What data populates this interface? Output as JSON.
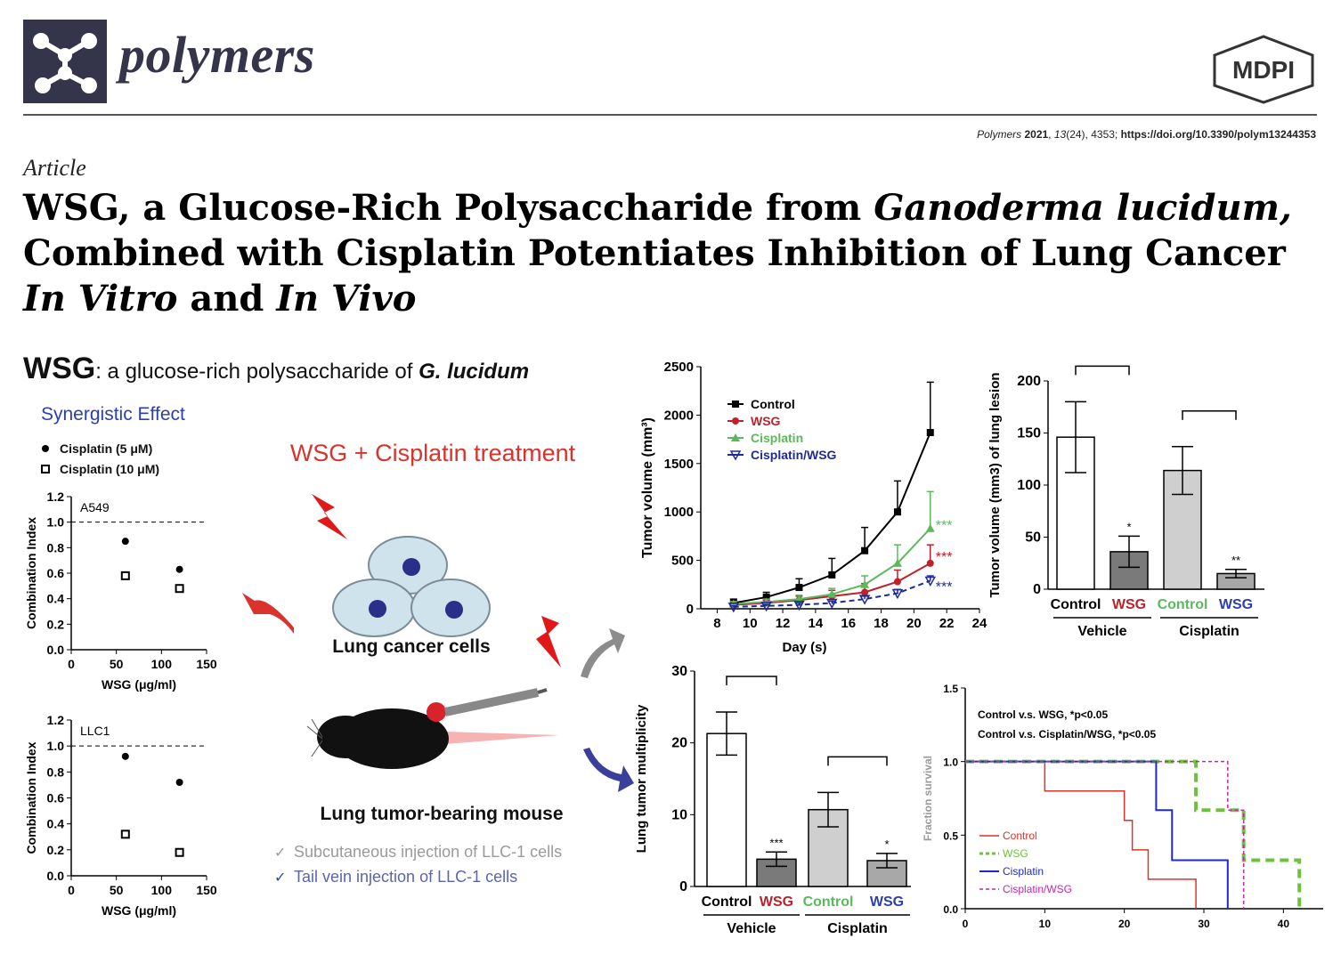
{
  "header": {
    "journal": "polymers",
    "publisher": "MDPI",
    "citation": {
      "journal": "Polymers",
      "year": "2021",
      "volume": "13",
      "issue": "(24)",
      "pages": ", 4353; ",
      "doi": "https://doi.org/10.3390/polym13244353"
    },
    "article_type": "Article"
  },
  "title": {
    "part1": "WSG, a Glucose-Rich Polysaccharide from ",
    "part2_italic": "Ganoderma lucidum,",
    "part3": "Combined with Cisplatin Potentiates Inhibition of Lung Cancer",
    "part4_italic": "In Vitro",
    "part5": " and ",
    "part6_italic": "In Vivo"
  },
  "graphical_abstract": {
    "heading_bold": "WSG",
    "heading_rest": ": a glucose-rich polysaccharide of ",
    "heading_italic": "G. lucidum",
    "synergy_title": "Synergistic Effect",
    "legend_cis5": "Cisplatin (5 μM)",
    "legend_cis10": "Cisplatin (10 μM)",
    "treatment_title": "WSG + Cisplatin treatment",
    "cells_label": "Lung cancer cells",
    "mouse_label": "Lung tumor-bearing mouse",
    "check1": "Subcutaneous injection of LLC-1 cells",
    "check2": "Tail vein injection of LLC-1 cells",
    "colors": {
      "control": "#000000",
      "wsg": "#c0202a",
      "cisplatin": "#5cb85c",
      "cisplatin_wsg": "#1f2a99",
      "pink": "#c425b0",
      "blue_text": "#2b3fb0",
      "red_text": "#d9332c"
    }
  },
  "chart_data": [
    {
      "id": "ci-a549",
      "type": "scatter",
      "panel_label": "A549",
      "xlabel": "WSG (μg/ml)",
      "ylabel": "Combination Index",
      "xlim": [
        0,
        150
      ],
      "ylim": [
        0,
        1.2
      ],
      "xticks": [
        "0",
        "50",
        "100",
        "150"
      ],
      "yticks": [
        "0.0",
        "0.2",
        "0.4",
        "0.6",
        "0.8",
        "1.0",
        "1.2"
      ],
      "reference_line": 1.0,
      "series": [
        {
          "name": "Cisplatin (5 μM)",
          "marker": "filled-circle",
          "points": [
            [
              60,
              0.85
            ],
            [
              120,
              0.63
            ]
          ]
        },
        {
          "name": "Cisplatin (10 μM)",
          "marker": "open-square",
          "points": [
            [
              60,
              0.58
            ],
            [
              120,
              0.48
            ]
          ]
        }
      ]
    },
    {
      "id": "ci-llc1",
      "type": "scatter",
      "panel_label": "LLC1",
      "xlabel": "WSG (μg/ml)",
      "ylabel": "Combination Index",
      "xlim": [
        0,
        150
      ],
      "ylim": [
        0,
        1.2
      ],
      "xticks": [
        "0",
        "50",
        "100",
        "150"
      ],
      "yticks": [
        "0.0",
        "0.2",
        "0.4",
        "0.6",
        "0.8",
        "1.0",
        "1.2"
      ],
      "reference_line": 1.0,
      "series": [
        {
          "name": "Cisplatin (5 μM)",
          "marker": "filled-circle",
          "points": [
            [
              60,
              0.92
            ],
            [
              120,
              0.72
            ]
          ]
        },
        {
          "name": "Cisplatin (10 μM)",
          "marker": "open-square",
          "points": [
            [
              60,
              0.32
            ],
            [
              120,
              0.18
            ]
          ]
        }
      ]
    },
    {
      "id": "tumor-volume-line",
      "type": "line",
      "xlabel": "Day (s)",
      "ylabel": "Tumor volume (mm³)",
      "xlim": [
        7,
        24
      ],
      "ylim": [
        0,
        2500
      ],
      "xticks": [
        "8",
        "10",
        "12",
        "14",
        "16",
        "18",
        "20",
        "22",
        "24"
      ],
      "yticks": [
        "0",
        "500",
        "1000",
        "1500",
        "2000",
        "2500"
      ],
      "legend_position": "top-left",
      "x": [
        9,
        11,
        13,
        15,
        17,
        19,
        21
      ],
      "series": [
        {
          "name": "Control",
          "values": [
            60,
            120,
            220,
            350,
            600,
            1000,
            1820
          ],
          "err": [
            40,
            50,
            90,
            170,
            240,
            320,
            520
          ]
        },
        {
          "name": "WSG",
          "values": [
            40,
            60,
            90,
            130,
            170,
            280,
            470
          ],
          "err": [
            20,
            30,
            40,
            60,
            90,
            120,
            190
          ]
        },
        {
          "name": "Cisplatin",
          "values": [
            50,
            70,
            100,
            150,
            250,
            470,
            830
          ],
          "err": [
            25,
            30,
            40,
            60,
            90,
            190,
            380
          ]
        },
        {
          "name": "Cisplatin/WSG",
          "values": [
            20,
            30,
            40,
            60,
            100,
            160,
            290
          ],
          "err": [
            10,
            15,
            20,
            20,
            30,
            40,
            50
          ]
        }
      ],
      "annotations": [
        "***",
        "***",
        "***"
      ]
    },
    {
      "id": "lung-lesion-bar",
      "type": "bar",
      "ylabel": "Tumor volume (mm3) of lung lesion",
      "ylim": [
        0,
        200
      ],
      "yticks": [
        "0",
        "50",
        "100",
        "150",
        "200"
      ],
      "categories": [
        "Control",
        "WSG",
        "Control",
        "WSG"
      ],
      "groups": [
        "Vehicle",
        "Cisplatin"
      ],
      "values": [
        146,
        36,
        114,
        15
      ],
      "err": [
        34,
        15,
        23,
        4
      ],
      "significance": [
        "",
        "*",
        "",
        "**"
      ]
    },
    {
      "id": "tumor-multiplicity-bar",
      "type": "bar",
      "ylabel": "Lung tumor multiplicity",
      "ylim": [
        0,
        30
      ],
      "yticks": [
        "0",
        "10",
        "20",
        "30"
      ],
      "categories": [
        "Control",
        "WSG",
        "Control",
        "WSG"
      ],
      "groups": [
        "Vehicle",
        "Cisplatin"
      ],
      "values": [
        21.3,
        3.8,
        10.7,
        3.6
      ],
      "err": [
        3.0,
        1.0,
        2.4,
        1.0
      ],
      "significance": [
        "",
        "***",
        "",
        "*"
      ]
    },
    {
      "id": "survival-curve",
      "type": "line",
      "ylabel": "Fraction survival",
      "xlim": [
        0,
        45
      ],
      "ylim": [
        0,
        1.5
      ],
      "xticks": [
        "0",
        "10",
        "20",
        "30",
        "40"
      ],
      "yticks": [
        "0.0",
        "0.5",
        "1.0",
        "1.5"
      ],
      "legend_position": "bottom-left",
      "stats": [
        "Control v.s. WSG, *p<0.05",
        "Control v.s. Cisplatin/WSG, *p<0.05"
      ],
      "series": [
        {
          "name": "Control",
          "steps": [
            [
              0,
              1.0
            ],
            [
              10,
              1.0
            ],
            [
              10,
              0.8
            ],
            [
              20,
              0.8
            ],
            [
              20,
              0.6
            ],
            [
              21,
              0.6
            ],
            [
              21,
              0.4
            ],
            [
              23,
              0.4
            ],
            [
              23,
              0.2
            ],
            [
              29,
              0.2
            ],
            [
              29,
              0.0
            ]
          ]
        },
        {
          "name": "WSG",
          "steps": [
            [
              0,
              1.0
            ],
            [
              29,
              1.0
            ],
            [
              29,
              0.67
            ],
            [
              35,
              0.67
            ],
            [
              35,
              0.33
            ],
            [
              42,
              0.33
            ],
            [
              42,
              0.0
            ]
          ]
        },
        {
          "name": "Cisplatin",
          "steps": [
            [
              0,
              1.0
            ],
            [
              24,
              1.0
            ],
            [
              24,
              0.67
            ],
            [
              26,
              0.67
            ],
            [
              26,
              0.33
            ],
            [
              33,
              0.33
            ],
            [
              33,
              0.0
            ]
          ]
        },
        {
          "name": "Cisplatin/WSG",
          "steps": [
            [
              0,
              1.0
            ],
            [
              33,
              1.0
            ],
            [
              33,
              0.67
            ],
            [
              35,
              0.67
            ],
            [
              35,
              0.0
            ]
          ]
        }
      ]
    }
  ]
}
